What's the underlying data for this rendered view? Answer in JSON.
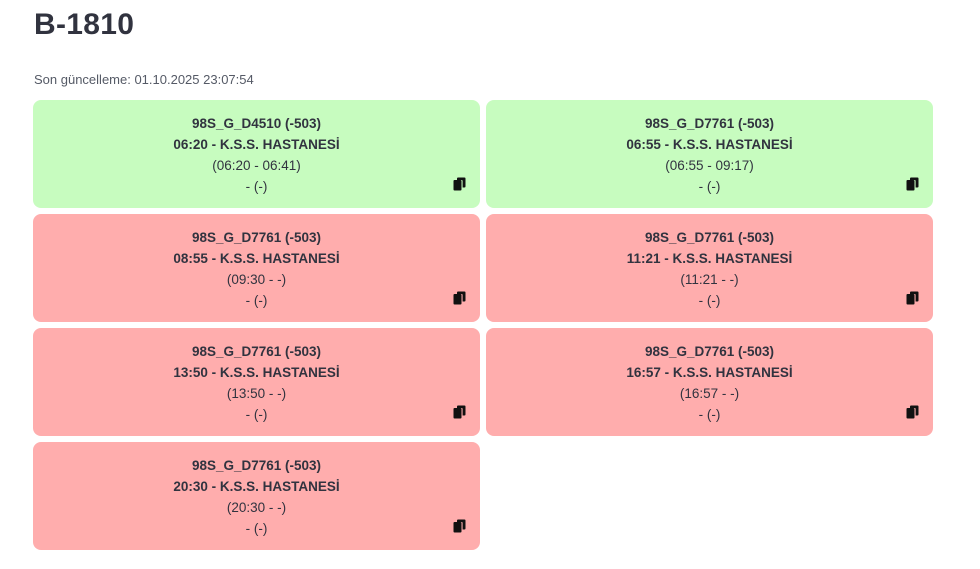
{
  "header": {
    "title": "B-1810",
    "last_update": "Son güncelleme: 01.10.2025 23:07:54"
  },
  "colors": {
    "ok": "#c7fcbf",
    "late": "#ffadad"
  },
  "trips": [
    {
      "status": "ok",
      "code": "98S_G_D4510 (-503)",
      "departure": "06:20 - K.S.S. HASTANESİ",
      "range": "(06:20 - 06:41)",
      "extra": "- (-)",
      "icon": "copy-icon"
    },
    {
      "status": "ok",
      "code": "98S_G_D7761 (-503)",
      "departure": "06:55 - K.S.S. HASTANESİ",
      "range": "(06:55 - 09:17)",
      "extra": "- (-)",
      "icon": "copy-icon"
    },
    {
      "status": "late",
      "code": "98S_G_D7761 (-503)",
      "departure": "08:55 - K.S.S. HASTANESİ",
      "range": "(09:30 - -)",
      "extra": "- (-)",
      "icon": "copy-icon"
    },
    {
      "status": "late",
      "code": "98S_G_D7761 (-503)",
      "departure": "11:21 - K.S.S. HASTANESİ",
      "range": "(11:21 - -)",
      "extra": "- (-)",
      "icon": "copy-icon"
    },
    {
      "status": "late",
      "code": "98S_G_D7761 (-503)",
      "departure": "13:50 - K.S.S. HASTANESİ",
      "range": "(13:50 - -)",
      "extra": "- (-)",
      "icon": "copy-icon"
    },
    {
      "status": "late",
      "code": "98S_G_D7761 (-503)",
      "departure": "16:57 - K.S.S. HASTANESİ",
      "range": "(16:57 - -)",
      "extra": "- (-)",
      "icon": "copy-icon"
    },
    {
      "status": "late",
      "code": "98S_G_D7761 (-503)",
      "departure": "20:30 - K.S.S. HASTANESİ",
      "range": "(20:30 - -)",
      "extra": "- (-)",
      "icon": "copy-icon"
    }
  ]
}
